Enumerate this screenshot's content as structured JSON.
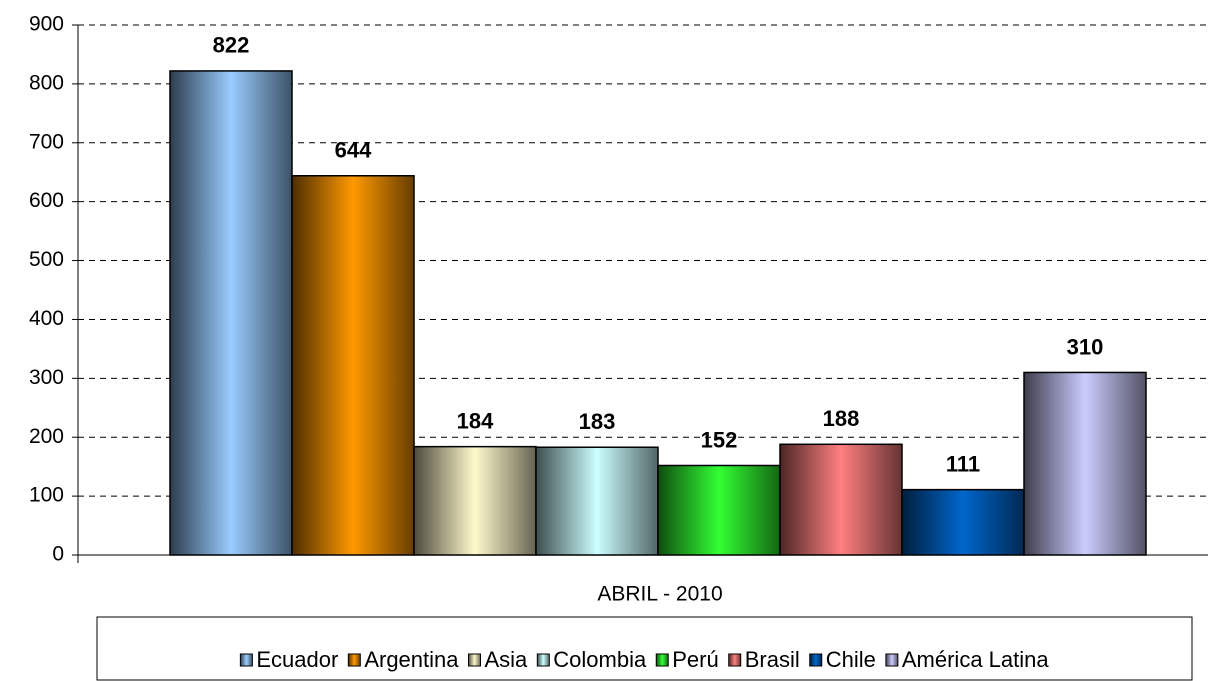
{
  "chart_data": {
    "type": "bar",
    "categories": [
      "ABRIL - 2010"
    ],
    "series": [
      {
        "name": "Ecuador",
        "color": "#99ccff",
        "values": [
          822
        ]
      },
      {
        "name": "Argentina",
        "color": "#ff9900",
        "values": [
          644
        ]
      },
      {
        "name": "Asia",
        "color": "#fffacc",
        "values": [
          184
        ]
      },
      {
        "name": "Colombia",
        "color": "#ccffff",
        "values": [
          183
        ]
      },
      {
        "name": "Perú",
        "color": "#33ff33",
        "values": [
          152
        ]
      },
      {
        "name": "Brasil",
        "color": "#ff8080",
        "values": [
          188
        ]
      },
      {
        "name": "Chile",
        "color": "#0066cc",
        "values": [
          111
        ]
      },
      {
        "name": "América Latina",
        "color": "#ccccff",
        "values": [
          310
        ]
      }
    ],
    "ylim": [
      0,
      900
    ],
    "yticks": [
      0,
      100,
      200,
      300,
      400,
      500,
      600,
      700,
      800,
      900
    ],
    "grid": true,
    "legend": "bottom"
  }
}
